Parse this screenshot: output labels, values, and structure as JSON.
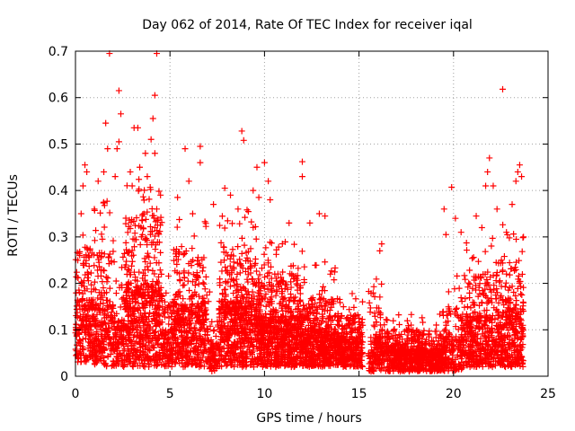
{
  "chart_data": {
    "type": "scatter",
    "title": "Day 062 of 2014, Rate Of TEC Index for receiver iqal",
    "xlabel": "GPS time / hours",
    "ylabel": "ROTI / TECUs",
    "xlim": [
      0,
      25
    ],
    "ylim": [
      0,
      0.7
    ],
    "xticks": [
      0,
      5,
      10,
      15,
      20,
      25
    ],
    "yticks": [
      0,
      0.1,
      0.2,
      0.3,
      0.4,
      0.5,
      0.6,
      0.7
    ],
    "xtick_labels": [
      "0",
      "5",
      "10",
      "15",
      "20",
      "25"
    ],
    "ytick_labels": [
      "0",
      "0.1",
      "0.2",
      "0.3",
      "0.4",
      "0.5",
      "0.6",
      "0.7"
    ],
    "grid": true,
    "marker": "+",
    "color": "#ff0000",
    "series": [
      {
        "name": "ROTI",
        "points": [
          [
            1.8,
            0.695
          ],
          [
            4.3,
            0.695
          ],
          [
            2.3,
            0.615
          ],
          [
            4.2,
            0.605
          ],
          [
            22.6,
            0.618
          ],
          [
            2.4,
            0.565
          ],
          [
            1.6,
            0.545
          ],
          [
            4.1,
            0.555
          ],
          [
            3.1,
            0.535
          ],
          [
            3.3,
            0.535
          ],
          [
            8.8,
            0.528
          ],
          [
            8.9,
            0.508
          ],
          [
            2.3,
            0.505
          ],
          [
            2.2,
            0.49
          ],
          [
            1.7,
            0.49
          ],
          [
            4.0,
            0.51
          ],
          [
            5.8,
            0.49
          ],
          [
            6.6,
            0.495
          ],
          [
            3.7,
            0.48
          ],
          [
            4.2,
            0.48
          ],
          [
            21.9,
            0.47
          ],
          [
            10.0,
            0.46
          ],
          [
            12.0,
            0.462
          ],
          [
            9.6,
            0.45
          ],
          [
            6.6,
            0.46
          ],
          [
            0.5,
            0.455
          ],
          [
            23.5,
            0.455
          ],
          [
            3.4,
            0.45
          ],
          [
            2.9,
            0.44
          ],
          [
            1.5,
            0.44
          ],
          [
            0.6,
            0.44
          ],
          [
            23.4,
            0.44
          ],
          [
            21.8,
            0.44
          ],
          [
            3.8,
            0.43
          ],
          [
            12.0,
            0.43
          ],
          [
            10.2,
            0.42
          ],
          [
            1.2,
            0.42
          ],
          [
            2.1,
            0.43
          ],
          [
            23.6,
            0.43
          ],
          [
            6.0,
            0.42
          ],
          [
            19.9,
            0.407
          ],
          [
            4.5,
            0.39
          ],
          [
            7.9,
            0.405
          ],
          [
            9.4,
            0.4
          ],
          [
            21.7,
            0.41
          ],
          [
            22.1,
            0.41
          ],
          [
            23.3,
            0.42
          ],
          [
            0.4,
            0.41
          ],
          [
            3.0,
            0.41
          ],
          [
            5.4,
            0.385
          ],
          [
            8.2,
            0.39
          ],
          [
            9.7,
            0.385
          ],
          [
            10.3,
            0.38
          ],
          [
            12.9,
            0.35
          ],
          [
            13.2,
            0.345
          ],
          [
            19.5,
            0.36
          ],
          [
            20.1,
            0.34
          ],
          [
            21.2,
            0.345
          ],
          [
            22.3,
            0.36
          ],
          [
            23.1,
            0.37
          ],
          [
            0.3,
            0.35
          ],
          [
            1.0,
            0.36
          ],
          [
            4.3,
            0.36
          ],
          [
            6.2,
            0.35
          ],
          [
            7.3,
            0.37
          ],
          [
            8.6,
            0.36
          ],
          [
            11.3,
            0.33
          ],
          [
            12.4,
            0.33
          ],
          [
            16.2,
            0.285
          ],
          [
            16.1,
            0.27
          ],
          [
            19.6,
            0.305
          ],
          [
            20.4,
            0.31
          ],
          [
            23.7,
            0.3
          ],
          [
            21.5,
            0.32
          ],
          [
            22.8,
            0.31
          ]
        ]
      }
    ],
    "bands": [
      {
        "from": 0.0,
        "to": 1.0,
        "base": 0.03,
        "peak": 0.28,
        "spikes": 0.36,
        "density": 22
      },
      {
        "from": 1.0,
        "to": 2.0,
        "base": 0.02,
        "peak": 0.27,
        "spikes": 0.38,
        "density": 22
      },
      {
        "from": 2.0,
        "to": 2.6,
        "base": 0.02,
        "peak": 0.2,
        "spikes": 0.3,
        "density": 18
      },
      {
        "from": 2.6,
        "to": 4.6,
        "base": 0.02,
        "peak": 0.35,
        "spikes": 0.44,
        "density": 28
      },
      {
        "from": 4.6,
        "to": 5.2,
        "base": 0.02,
        "peak": 0.17,
        "spikes": 0.27,
        "density": 18
      },
      {
        "from": 5.2,
        "to": 7.0,
        "base": 0.02,
        "peak": 0.27,
        "spikes": 0.34,
        "density": 24
      },
      {
        "from": 7.0,
        "to": 7.6,
        "base": 0.01,
        "peak": 0.13,
        "spikes": 0.2,
        "density": 14
      },
      {
        "from": 7.6,
        "to": 9.6,
        "base": 0.02,
        "peak": 0.28,
        "spikes": 0.36,
        "density": 28
      },
      {
        "from": 9.6,
        "to": 12.0,
        "base": 0.02,
        "peak": 0.22,
        "spikes": 0.29,
        "density": 30
      },
      {
        "from": 12.0,
        "to": 14.0,
        "base": 0.02,
        "peak": 0.17,
        "spikes": 0.25,
        "density": 26
      },
      {
        "from": 14.0,
        "to": 15.2,
        "base": 0.02,
        "peak": 0.14,
        "spikes": 0.19,
        "density": 22
      },
      {
        "from": 15.5,
        "to": 16.5,
        "base": 0.01,
        "peak": 0.15,
        "spikes": 0.22,
        "density": 16
      },
      {
        "from": 16.5,
        "to": 19.5,
        "base": 0.01,
        "peak": 0.1,
        "spikes": 0.14,
        "density": 22
      },
      {
        "from": 19.5,
        "to": 20.6,
        "base": 0.01,
        "peak": 0.15,
        "spikes": 0.22,
        "density": 16
      },
      {
        "from": 20.6,
        "to": 22.2,
        "base": 0.02,
        "peak": 0.22,
        "spikes": 0.3,
        "density": 22
      },
      {
        "from": 22.2,
        "to": 23.7,
        "base": 0.02,
        "peak": 0.25,
        "spikes": 0.33,
        "density": 24
      }
    ]
  }
}
